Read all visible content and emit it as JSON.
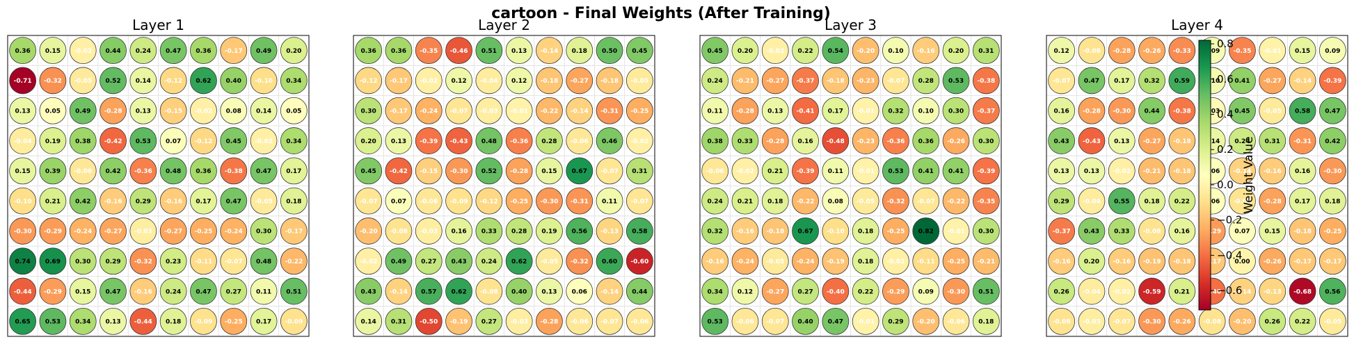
{
  "figure": {
    "title": "cartoon - Final Weights (After Training)",
    "colorbar": {
      "label": "Weight Value",
      "colormap": "RdYlGn",
      "vmin": -0.71,
      "vmax": 0.82,
      "ticks": [
        0.8,
        0.6,
        0.4,
        0.2,
        0.0,
        -0.2,
        -0.4,
        -0.6
      ],
      "tick_labels": [
        "0.8",
        "0.6",
        "0.4",
        "0.2",
        "0.0",
        "−0.2",
        "−0.4",
        "−0.6"
      ]
    },
    "cell_grid": true
  },
  "chart_data": [
    {
      "type": "heatmap",
      "title": "Layer 1",
      "rows": 10,
      "cols": 10,
      "values": [
        [
          0.36,
          0.15,
          -0.02,
          0.44,
          0.24,
          0.47,
          0.36,
          -0.17,
          0.49,
          0.2
        ],
        [
          -0.71,
          -0.32,
          -0.05,
          0.52,
          0.14,
          -0.12,
          0.62,
          0.4,
          -0.1,
          0.34
        ],
        [
          0.13,
          0.05,
          0.49,
          -0.28,
          0.13,
          -0.15,
          -0.02,
          0.08,
          0.14,
          0.05
        ],
        [
          -0.04,
          0.19,
          0.38,
          -0.42,
          0.53,
          0.07,
          -0.12,
          0.45,
          -0.02,
          0.34
        ],
        [
          0.15,
          0.39,
          -0.06,
          0.42,
          -0.36,
          0.48,
          0.36,
          -0.38,
          0.47,
          0.17
        ],
        [
          -0.1,
          0.21,
          0.42,
          -0.16,
          0.29,
          -0.16,
          0.17,
          0.47,
          -0.05,
          0.18
        ],
        [
          -0.3,
          -0.29,
          -0.24,
          -0.27,
          -0.03,
          -0.27,
          -0.25,
          -0.24,
          0.3,
          -0.17
        ],
        [
          0.74,
          0.69,
          0.3,
          0.29,
          -0.32,
          0.23,
          -0.11,
          -0.07,
          0.48,
          -0.22
        ],
        [
          -0.44,
          -0.29,
          0.15,
          0.47,
          -0.16,
          0.24,
          0.47,
          0.27,
          0.11,
          0.51
        ],
        [
          0.65,
          0.53,
          0.34,
          0.13,
          -0.44,
          0.18,
          -0.09,
          -0.25,
          0.17,
          -0.09
        ]
      ]
    },
    {
      "type": "heatmap",
      "title": "Layer 2",
      "rows": 10,
      "cols": 10,
      "values": [
        [
          0.36,
          0.36,
          -0.35,
          -0.46,
          0.51,
          0.13,
          -0.14,
          0.18,
          0.5,
          0.45
        ],
        [
          -0.12,
          -0.17,
          -0.02,
          0.12,
          -0.04,
          0.12,
          -0.18,
          -0.27,
          -0.18,
          -0.05
        ],
        [
          0.3,
          -0.17,
          -0.24,
          -0.07,
          -0.03,
          -0.01,
          -0.22,
          -0.14,
          -0.31,
          -0.25
        ],
        [
          0.2,
          0.13,
          -0.39,
          -0.43,
          0.48,
          -0.36,
          0.28,
          -0.06,
          0.46,
          -0.02
        ],
        [
          0.45,
          -0.42,
          -0.15,
          -0.3,
          0.52,
          -0.28,
          0.15,
          0.67,
          -0.07,
          0.31
        ],
        [
          -0.07,
          0.07,
          -0.06,
          -0.09,
          -0.12,
          -0.25,
          -0.3,
          -0.31,
          0.11,
          -0.07
        ],
        [
          -0.2,
          -0.08,
          -0.03,
          0.16,
          0.33,
          0.28,
          0.19,
          0.56,
          -0.13,
          0.58
        ],
        [
          -0.02,
          0.49,
          0.27,
          0.43,
          0.24,
          0.62,
          -0.05,
          -0.32,
          0.6,
          -0.6
        ],
        [
          0.43,
          -0.14,
          0.57,
          0.62,
          -0.08,
          0.4,
          0.13,
          0.06,
          -0.14,
          0.44
        ],
        [
          0.14,
          0.31,
          -0.5,
          -0.19,
          0.27,
          -0.03,
          -0.28,
          -0.06,
          -0.07,
          -0.06
        ]
      ]
    },
    {
      "type": "heatmap",
      "title": "Layer 3",
      "rows": 10,
      "cols": 10,
      "values": [
        [
          0.45,
          0.2,
          -0.02,
          0.22,
          0.54,
          -0.2,
          0.1,
          -0.16,
          0.2,
          0.31
        ],
        [
          0.24,
          -0.21,
          -0.27,
          -0.37,
          -0.18,
          -0.23,
          -0.07,
          0.28,
          0.53,
          -0.38
        ],
        [
          0.11,
          -0.28,
          0.13,
          -0.41,
          0.17,
          -0.01,
          0.32,
          0.1,
          0.3,
          -0.37
        ],
        [
          0.38,
          0.33,
          -0.28,
          0.16,
          -0.48,
          -0.23,
          -0.36,
          0.36,
          -0.26,
          0.3
        ],
        [
          -0.06,
          -0.02,
          0.21,
          -0.39,
          0.11,
          -0.01,
          0.53,
          0.41,
          0.41,
          -0.39
        ],
        [
          0.24,
          0.21,
          0.18,
          -0.22,
          0.08,
          -0.05,
          -0.32,
          -0.07,
          -0.22,
          -0.35
        ],
        [
          0.32,
          -0.16,
          -0.18,
          0.67,
          -0.1,
          0.18,
          -0.25,
          0.82,
          -0.01,
          0.3
        ],
        [
          -0.16,
          -0.24,
          -0.05,
          -0.24,
          -0.19,
          0.18,
          -0.02,
          -0.11,
          -0.25,
          -0.21
        ],
        [
          0.34,
          0.12,
          -0.27,
          0.27,
          -0.4,
          0.22,
          -0.29,
          0.09,
          -0.3,
          0.51
        ],
        [
          0.53,
          -0.06,
          -0.07,
          0.4,
          0.47,
          -0.01,
          0.29,
          -0.2,
          -0.06,
          0.18
        ]
      ]
    },
    {
      "type": "heatmap",
      "title": "Layer 4",
      "rows": 10,
      "cols": 10,
      "values": [
        [
          0.12,
          -0.08,
          -0.28,
          -0.26,
          -0.33,
          0.09,
          -0.35,
          -0.01,
          0.15,
          0.09
        ],
        [
          -0.07,
          0.47,
          0.17,
          0.32,
          0.59,
          0.1,
          0.41,
          -0.27,
          -0.14,
          -0.39
        ],
        [
          0.16,
          -0.28,
          -0.3,
          0.44,
          -0.38,
          0.03,
          0.45,
          -0.05,
          0.58,
          0.47
        ],
        [
          0.43,
          -0.43,
          0.13,
          -0.27,
          -0.18,
          0.14,
          0.24,
          0.31,
          -0.31,
          0.42
        ],
        [
          0.13,
          0.13,
          -0.02,
          -0.21,
          -0.18,
          0.06,
          -0.14,
          -0.16,
          0.16,
          -0.3
        ],
        [
          0.29,
          -0.04,
          0.55,
          0.18,
          0.22,
          0.06,
          -0.08,
          -0.28,
          0.17,
          0.18
        ],
        [
          -0.37,
          0.43,
          0.33,
          -0.08,
          0.16,
          -0.29,
          0.07,
          0.15,
          -0.18,
          -0.25
        ],
        [
          -0.16,
          0.2,
          -0.16,
          -0.19,
          -0.18,
          -0.17,
          0.0,
          -0.26,
          -0.17,
          -0.17
        ],
        [
          0.26,
          -0.04,
          -0.02,
          -0.59,
          0.21,
          -0.4,
          -0.14,
          -0.13,
          -0.68,
          0.56
        ],
        [
          -0.08,
          -0.03,
          -0.07,
          -0.3,
          -0.26,
          -0.08,
          -0.2,
          0.26,
          0.22,
          -0.05
        ]
      ]
    }
  ]
}
